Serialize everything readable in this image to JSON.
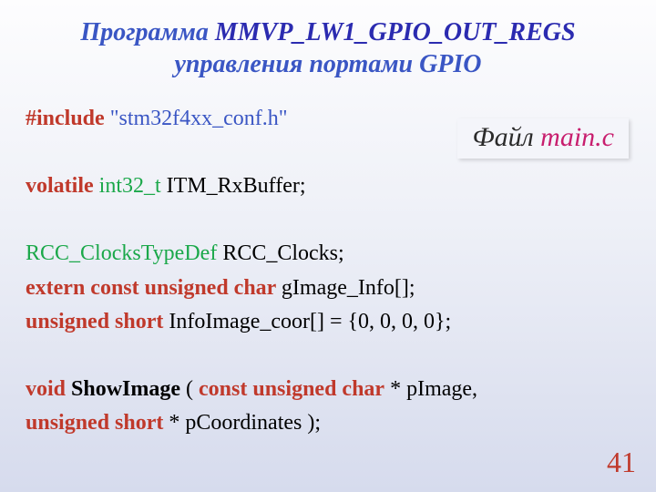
{
  "title": {
    "part1": "Программа ",
    "prog_name": "MMVP_LW1_GPIO_OUT_REGS",
    "part2": "управления портами GPIO"
  },
  "file_badge": {
    "label": "Файл ",
    "filename": "main.c"
  },
  "code": {
    "l1": {
      "include": "#include ",
      "header": "\"stm32f4xx_conf.h\""
    },
    "l2": {
      "volatile": "volatile ",
      "type": "int32_t",
      "rest": " ITM_RxBuffer;"
    },
    "l3": {
      "type": "RCC_ClocksTypeDef",
      "rest": " RCC_Clocks;"
    },
    "l4": {
      "kw": "extern const unsigned char ",
      "rest": "gImage_Info[];"
    },
    "l5": {
      "kw": "unsigned short ",
      "rest": "InfoImage_coor[] = {0, 0, 0, 0};"
    },
    "l6": {
      "kw1": "void ",
      "fn": "ShowImage",
      "mid": " ( ",
      "kw2": "const unsigned char",
      "rest": " * pImage,"
    },
    "l7": {
      "kw": "unsigned short",
      "rest": " * pCoordinates );"
    }
  },
  "page_number": "41",
  "styling": {
    "colors": {
      "title": "#3a56c4",
      "keyword": "#c0392b",
      "type": "#1ba84a",
      "string": "#3a56c4",
      "filename": "#c81e6e",
      "pagenum": "#c0392b",
      "background_top": "#fdfdfe",
      "background_bottom": "#d6dbed"
    },
    "font_family": "Times New Roman",
    "title_fontsize": 28,
    "code_fontsize": 24,
    "badge_fontsize": 30,
    "pagenum_fontsize": 32
  }
}
